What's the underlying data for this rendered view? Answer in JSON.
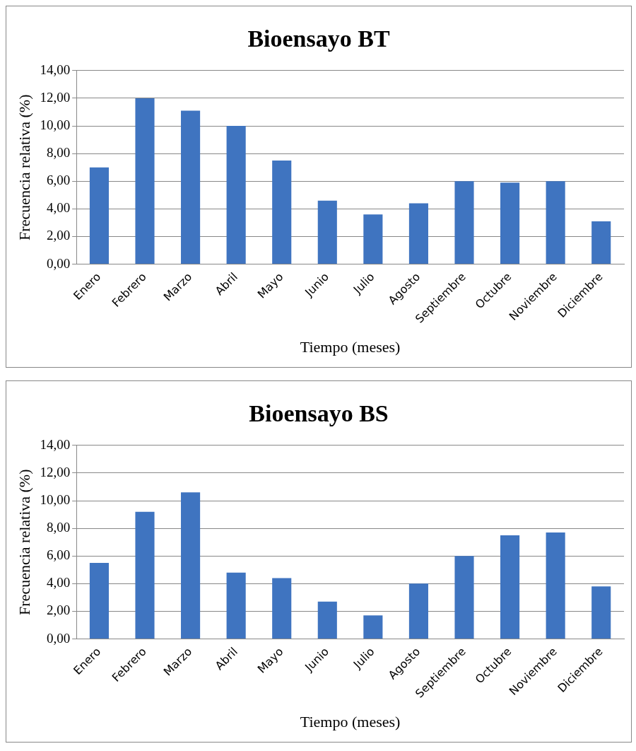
{
  "chart_data": [
    {
      "type": "bar",
      "title": "Bioensayo BT",
      "xlabel": "Tiempo (meses)",
      "ylabel": "Frecuencia relativa (%)",
      "categories": [
        "Enero",
        "Febrero",
        "Marzo",
        "Abril",
        "Mayo",
        "Junio",
        "Julio",
        "Agosto",
        "Septiembre",
        "Octubre",
        "Noviembre",
        "Diciembre"
      ],
      "series": [
        {
          "color": "#3f74c0",
          "values": [
            7.0,
            12.0,
            11.1,
            10.0,
            7.5,
            4.6,
            3.6,
            4.4,
            6.0,
            5.9,
            6.0,
            3.1
          ]
        }
      ],
      "ylim": [
        0,
        14
      ],
      "yticks": [
        {
          "value": 0,
          "label": "0,00"
        },
        {
          "value": 2,
          "label": "2,00"
        },
        {
          "value": 4,
          "label": "4,00"
        },
        {
          "value": 6,
          "label": "6,00"
        },
        {
          "value": 8,
          "label": "8,00"
        },
        {
          "value": 10,
          "label": "10,00"
        },
        {
          "value": 12,
          "label": "12,00"
        },
        {
          "value": 14,
          "label": "14,00"
        }
      ],
      "grid": "y",
      "legend": false
    },
    {
      "type": "bar",
      "title": "Bioensayo BS",
      "xlabel": "Tiempo (meses)",
      "ylabel": "Frecuencia relativa (%)",
      "categories": [
        "Enero",
        "Febrero",
        "Marzo",
        "Abril",
        "Mayo",
        "Junio",
        "Julio",
        "Agosto",
        "Septiembre",
        "Octubre",
        "Noviembre",
        "Diciembre"
      ],
      "series": [
        {
          "color": "#3f74c0",
          "values": [
            5.5,
            9.2,
            10.6,
            4.8,
            4.4,
            2.7,
            1.7,
            4.0,
            6.0,
            7.5,
            7.7,
            3.8
          ]
        }
      ],
      "ylim": [
        0,
        14
      ],
      "yticks": [
        {
          "value": 0,
          "label": "0,00"
        },
        {
          "value": 2,
          "label": "2,00"
        },
        {
          "value": 4,
          "label": "4,00"
        },
        {
          "value": 6,
          "label": "6,00"
        },
        {
          "value": 8,
          "label": "8,00"
        },
        {
          "value": 10,
          "label": "10,00"
        },
        {
          "value": 12,
          "label": "12,00"
        },
        {
          "value": 14,
          "label": "14,00"
        }
      ],
      "grid": "y",
      "legend": false
    }
  ]
}
